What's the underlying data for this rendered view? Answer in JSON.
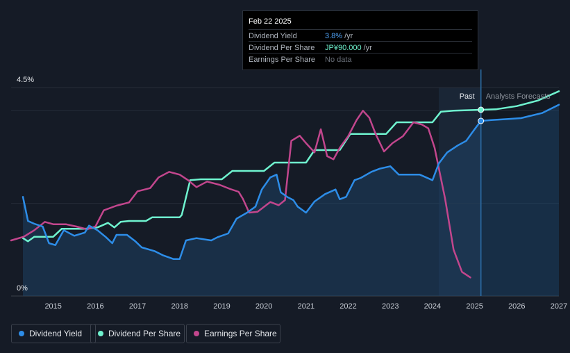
{
  "tooltip": {
    "date": "Feb 22 2025",
    "rows": [
      {
        "label": "Dividend Yield",
        "value": "3.8%",
        "unit": "/yr",
        "color": "#4fa3f7"
      },
      {
        "label": "Dividend Per Share",
        "value": "JP¥90.000",
        "unit": "/yr",
        "color": "#6ff3cf"
      },
      {
        "label": "Earnings Per Share",
        "value": "No data",
        "unit": "",
        "color": "#6b717b"
      }
    ]
  },
  "legend": [
    {
      "label": "Dividend Yield",
      "color": "#2d8de8"
    },
    {
      "label": "Dividend Per Share",
      "color": "#6ff3cf"
    },
    {
      "label": "Earnings Per Share",
      "color": "#c2468d"
    }
  ],
  "chart_data": {
    "type": "line",
    "y_axis": {
      "range": [
        0,
        4.5
      ],
      "tick_labels": [
        "4.5%",
        "0%"
      ]
    },
    "x_axis": {
      "range": [
        2014.0,
        2027.0
      ],
      "tick_labels": [
        "2015",
        "2016",
        "2017",
        "2018",
        "2019",
        "2020",
        "2021",
        "2022",
        "2023",
        "2024",
        "2025",
        "2026",
        "2027"
      ]
    },
    "regions": {
      "past_label": "Past",
      "forecast_label": "Analysts Forecasts",
      "highlight_start": 2024.15,
      "divider_at": 2025.15
    },
    "marker_at": 2025.15,
    "series": [
      {
        "name": "Dividend Yield",
        "color": "#2d8de8",
        "area": true,
        "points": [
          [
            2014.28,
            2.14
          ],
          [
            2014.4,
            1.62
          ],
          [
            2014.55,
            1.56
          ],
          [
            2014.75,
            1.5
          ],
          [
            2014.9,
            1.14
          ],
          [
            2015.05,
            1.1
          ],
          [
            2015.25,
            1.42
          ],
          [
            2015.5,
            1.3
          ],
          [
            2015.75,
            1.37
          ],
          [
            2015.85,
            1.52
          ],
          [
            2016.05,
            1.42
          ],
          [
            2016.25,
            1.27
          ],
          [
            2016.4,
            1.14
          ],
          [
            2016.5,
            1.32
          ],
          [
            2016.75,
            1.32
          ],
          [
            2016.95,
            1.18
          ],
          [
            2017.1,
            1.05
          ],
          [
            2017.4,
            0.97
          ],
          [
            2017.6,
            0.88
          ],
          [
            2017.85,
            0.8
          ],
          [
            2018.0,
            0.8
          ],
          [
            2018.15,
            1.2
          ],
          [
            2018.4,
            1.25
          ],
          [
            2018.75,
            1.2
          ],
          [
            2018.9,
            1.27
          ],
          [
            2019.15,
            1.35
          ],
          [
            2019.35,
            1.67
          ],
          [
            2019.6,
            1.8
          ],
          [
            2019.8,
            1.93
          ],
          [
            2019.95,
            2.3
          ],
          [
            2020.15,
            2.56
          ],
          [
            2020.3,
            2.62
          ],
          [
            2020.4,
            2.24
          ],
          [
            2020.55,
            2.14
          ],
          [
            2020.7,
            2.07
          ],
          [
            2020.8,
            1.93
          ],
          [
            2021.0,
            1.8
          ],
          [
            2021.2,
            2.04
          ],
          [
            2021.45,
            2.2
          ],
          [
            2021.7,
            2.3
          ],
          [
            2021.8,
            2.09
          ],
          [
            2021.95,
            2.14
          ],
          [
            2022.15,
            2.5
          ],
          [
            2022.3,
            2.55
          ],
          [
            2022.55,
            2.68
          ],
          [
            2022.75,
            2.75
          ],
          [
            2023.0,
            2.8
          ],
          [
            2023.2,
            2.62
          ],
          [
            2023.45,
            2.62
          ],
          [
            2023.7,
            2.62
          ],
          [
            2024.0,
            2.5
          ],
          [
            2024.15,
            2.86
          ],
          [
            2024.35,
            3.1
          ],
          [
            2024.6,
            3.25
          ],
          [
            2024.8,
            3.35
          ],
          [
            2025.0,
            3.6
          ],
          [
            2025.15,
            3.78
          ],
          [
            2025.4,
            3.8
          ],
          [
            2025.8,
            3.82
          ],
          [
            2026.1,
            3.84
          ],
          [
            2026.6,
            3.95
          ],
          [
            2027.0,
            4.13
          ]
        ]
      },
      {
        "name": "Dividend Per Share",
        "color": "#6ff3cf",
        "area": false,
        "points": [
          [
            2014.28,
            1.25
          ],
          [
            2014.4,
            1.18
          ],
          [
            2014.55,
            1.28
          ],
          [
            2014.75,
            1.28
          ],
          [
            2015.0,
            1.28
          ],
          [
            2015.2,
            1.45
          ],
          [
            2015.5,
            1.45
          ],
          [
            2015.75,
            1.45
          ],
          [
            2016.05,
            1.48
          ],
          [
            2016.3,
            1.58
          ],
          [
            2016.45,
            1.48
          ],
          [
            2016.6,
            1.6
          ],
          [
            2016.8,
            1.62
          ],
          [
            2017.2,
            1.62
          ],
          [
            2017.35,
            1.7
          ],
          [
            2017.6,
            1.7
          ],
          [
            2018.0,
            1.7
          ],
          [
            2018.05,
            1.75
          ],
          [
            2018.25,
            2.5
          ],
          [
            2018.5,
            2.52
          ],
          [
            2019.0,
            2.52
          ],
          [
            2019.25,
            2.7
          ],
          [
            2019.5,
            2.7
          ],
          [
            2020.0,
            2.7
          ],
          [
            2020.25,
            2.88
          ],
          [
            2020.5,
            2.88
          ],
          [
            2021.0,
            2.88
          ],
          [
            2021.2,
            3.15
          ],
          [
            2021.5,
            3.15
          ],
          [
            2021.8,
            3.15
          ],
          [
            2022.05,
            3.5
          ],
          [
            2022.5,
            3.5
          ],
          [
            2022.9,
            3.5
          ],
          [
            2023.15,
            3.75
          ],
          [
            2023.5,
            3.75
          ],
          [
            2023.8,
            3.75
          ],
          [
            2024.0,
            3.75
          ],
          [
            2024.2,
            3.98
          ],
          [
            2024.5,
            4.0
          ],
          [
            2025.15,
            4.02
          ],
          [
            2025.5,
            4.03
          ],
          [
            2026.0,
            4.1
          ],
          [
            2026.5,
            4.22
          ],
          [
            2027.0,
            4.42
          ]
        ]
      },
      {
        "name": "Earnings Per Share",
        "color": "#c2468d",
        "area": false,
        "points": [
          [
            2014.0,
            1.2
          ],
          [
            2014.3,
            1.28
          ],
          [
            2014.55,
            1.42
          ],
          [
            2014.8,
            1.6
          ],
          [
            2015.0,
            1.55
          ],
          [
            2015.3,
            1.55
          ],
          [
            2015.55,
            1.5
          ],
          [
            2015.8,
            1.44
          ],
          [
            2016.0,
            1.5
          ],
          [
            2016.2,
            1.85
          ],
          [
            2016.5,
            1.95
          ],
          [
            2016.8,
            2.02
          ],
          [
            2017.0,
            2.26
          ],
          [
            2017.3,
            2.33
          ],
          [
            2017.5,
            2.56
          ],
          [
            2017.75,
            2.68
          ],
          [
            2018.0,
            2.62
          ],
          [
            2018.2,
            2.5
          ],
          [
            2018.4,
            2.35
          ],
          [
            2018.65,
            2.47
          ],
          [
            2018.95,
            2.4
          ],
          [
            2019.2,
            2.31
          ],
          [
            2019.4,
            2.25
          ],
          [
            2019.5,
            2.1
          ],
          [
            2019.65,
            1.8
          ],
          [
            2019.85,
            1.82
          ],
          [
            2020.15,
            2.03
          ],
          [
            2020.35,
            1.96
          ],
          [
            2020.5,
            2.07
          ],
          [
            2020.65,
            3.35
          ],
          [
            2020.85,
            3.46
          ],
          [
            2021.0,
            3.3
          ],
          [
            2021.2,
            3.1
          ],
          [
            2021.35,
            3.6
          ],
          [
            2021.5,
            3.02
          ],
          [
            2021.65,
            2.95
          ],
          [
            2021.8,
            3.2
          ],
          [
            2022.0,
            3.45
          ],
          [
            2022.2,
            3.8
          ],
          [
            2022.35,
            4.0
          ],
          [
            2022.5,
            3.85
          ],
          [
            2022.65,
            3.5
          ],
          [
            2022.85,
            3.12
          ],
          [
            2023.05,
            3.3
          ],
          [
            2023.3,
            3.45
          ],
          [
            2023.55,
            3.75
          ],
          [
            2023.75,
            3.7
          ],
          [
            2023.9,
            3.62
          ],
          [
            2024.05,
            3.2
          ],
          [
            2024.3,
            2.1
          ],
          [
            2024.5,
            1.0
          ],
          [
            2024.7,
            0.52
          ],
          [
            2024.9,
            0.4
          ]
        ]
      }
    ]
  }
}
